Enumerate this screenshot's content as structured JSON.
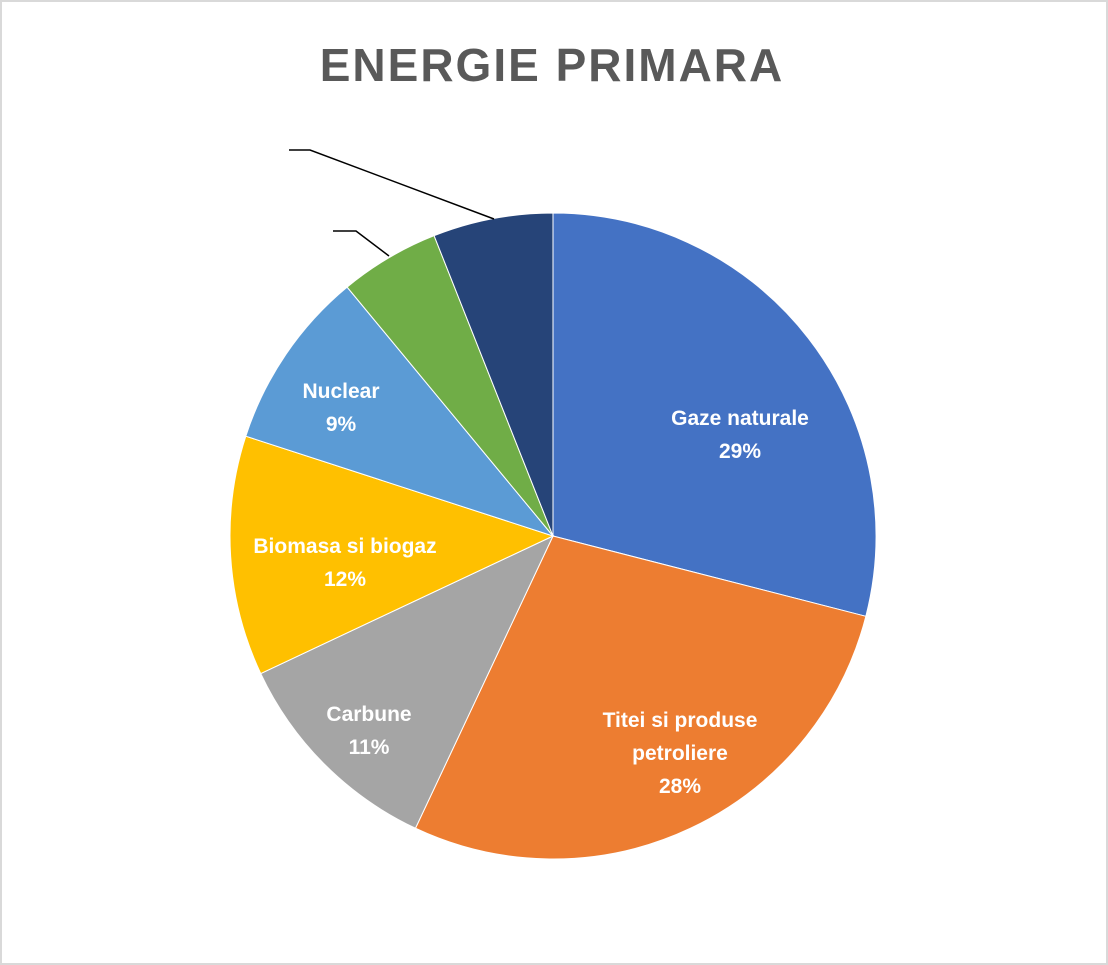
{
  "chart_data": {
    "type": "pie",
    "title": "ENERGIE PRIMARA",
    "slices": [
      {
        "label": "Gaze naturale",
        "value": 29,
        "percent_label": "29%",
        "color": "#4472C4",
        "show_label": true
      },
      {
        "label": "Titei si produse petroliere",
        "value": 28,
        "percent_label": "28%",
        "color": "#ED7D31",
        "show_label": true
      },
      {
        "label": "Carbune",
        "value": 11,
        "percent_label": "11%",
        "color": "#A5A5A5",
        "show_label": true
      },
      {
        "label": "Biomasa si biogaz",
        "value": 12,
        "percent_label": "12%",
        "color": "#FFC000",
        "show_label": true
      },
      {
        "label": "Nuclear",
        "value": 9,
        "percent_label": "9%",
        "color": "#5B9BD5",
        "show_label": true
      },
      {
        "label": "",
        "value": 5,
        "percent_label": "",
        "color": "#70AD47",
        "show_label": false
      },
      {
        "label": "",
        "value": 6,
        "percent_label": "",
        "color": "#264478",
        "show_label": false
      }
    ],
    "start_angle": "12 o'clock",
    "direction": "clockwise",
    "legend": "none"
  }
}
